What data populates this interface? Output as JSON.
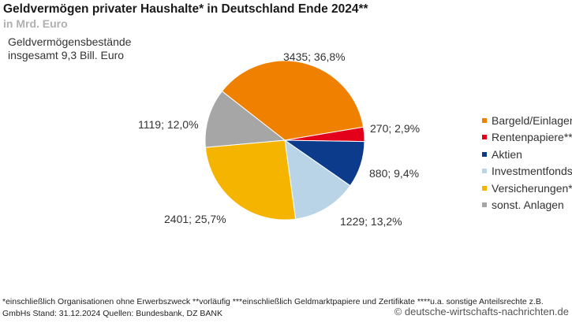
{
  "chart_data": {
    "type": "pie",
    "title": "Geldvermögen privater Haushalte* in Deutschland Ende 2024**",
    "subtitle": "in Mrd. Euro",
    "note": [
      "Geldvermögensbestände",
      "insgesamt 9,3 Bill. Euro"
    ],
    "legend_position": "right",
    "slices": [
      {
        "name": "Bargeld/Einlagen",
        "value": 3435,
        "percent": 36.8,
        "label": "3435; 36,8%",
        "color": "#F08000"
      },
      {
        "name": "Rentenpapiere***",
        "value": 270,
        "percent": 2.9,
        "label": "270; 2,9%",
        "color": "#E3001B"
      },
      {
        "name": "Aktien",
        "value": 880,
        "percent": 9.4,
        "label": "880; 9,4%",
        "color": "#0C3B8C"
      },
      {
        "name": "Investmentfonds",
        "value": 1229,
        "percent": 13.2,
        "label": "1229; 13,2%",
        "color": "#B9D4E6"
      },
      {
        "name": "Versicherungen****",
        "value": 2401,
        "percent": 25.7,
        "label": "2401; 25,7%",
        "color": "#F5B400"
      },
      {
        "name": "sonst. Anlagen",
        "value": 1119,
        "percent": 12.0,
        "label": "1119; 12,0%",
        "color": "#A6A6A6"
      }
    ]
  },
  "footer": {
    "line1": "*einschließlich Organisationen ohne Erwerbszweck     **vorläufig     ***einschließlich Geldmarktpapiere und Zertifikate     ****u.a. sonstige Anteilsrechte z.B.",
    "line2": "GmbHs     Stand: 31.12.2024     Quellen: Bundesbank, DZ BANK",
    "watermark": "© deutsche-wirtschafts-nachrichten.de"
  }
}
